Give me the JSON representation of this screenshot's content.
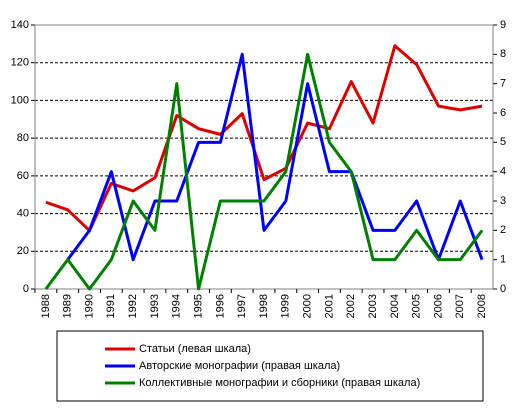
{
  "chart_data": {
    "type": "line",
    "categories": [
      "1988",
      "1989",
      "1990",
      "1991",
      "1992",
      "1993",
      "1994",
      "1995",
      "1996",
      "1997",
      "1998",
      "1999",
      "2000",
      "2001",
      "2002",
      "2003",
      "2004",
      "2005",
      "2006",
      "2007",
      "2008"
    ],
    "series": [
      {
        "name": "Статьи (левая шкала)",
        "color": "#e00000",
        "values": [
          46,
          42,
          31,
          56,
          52,
          59,
          92,
          85,
          82,
          93,
          58,
          64,
          88,
          85,
          110,
          88,
          129,
          119,
          97,
          95,
          97
        ]
      },
      {
        "name": "Авторские монографии (правая шкала)",
        "color": "#0000ff",
        "axis": "y2",
        "values": [
          null,
          1,
          2,
          4,
          1,
          3,
          3,
          5,
          5,
          8,
          2,
          3,
          7,
          4,
          4,
          2,
          2,
          3,
          1,
          3,
          1
        ]
      },
      {
        "name": "Коллективные монографии и сборники (правая шкала)",
        "color": "#008000",
        "axis": "y2",
        "values": [
          0,
          1,
          0,
          1,
          3,
          2,
          7,
          0,
          3,
          3,
          3,
          4,
          8,
          5,
          4,
          1,
          1,
          2,
          1,
          1,
          2
        ]
      }
    ],
    "ylim": [
      0,
      140
    ],
    "yticks": [
      0,
      20,
      40,
      60,
      80,
      100,
      120,
      140
    ],
    "y2lim": [
      0,
      9
    ],
    "y2ticks": [
      0,
      1,
      2,
      3,
      4,
      5,
      6,
      7,
      8,
      9
    ],
    "grid": true
  }
}
